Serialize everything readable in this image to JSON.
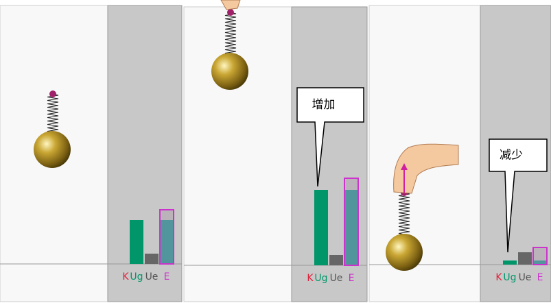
{
  "panels": [
    {
      "labels": [
        "K",
        "Ug",
        "Ue",
        "E"
      ],
      "values": [
        0,
        64,
        15,
        79
      ]
    },
    {
      "labels": [
        "K",
        "Ug",
        "Ue",
        "E"
      ],
      "values": [
        0,
        110,
        15,
        127
      ],
      "callout": "增加"
    },
    {
      "labels": [
        "K",
        "Ug",
        "Ue",
        "E"
      ],
      "values": [
        0,
        6,
        18,
        25
      ],
      "callout": "减少"
    }
  ]
}
